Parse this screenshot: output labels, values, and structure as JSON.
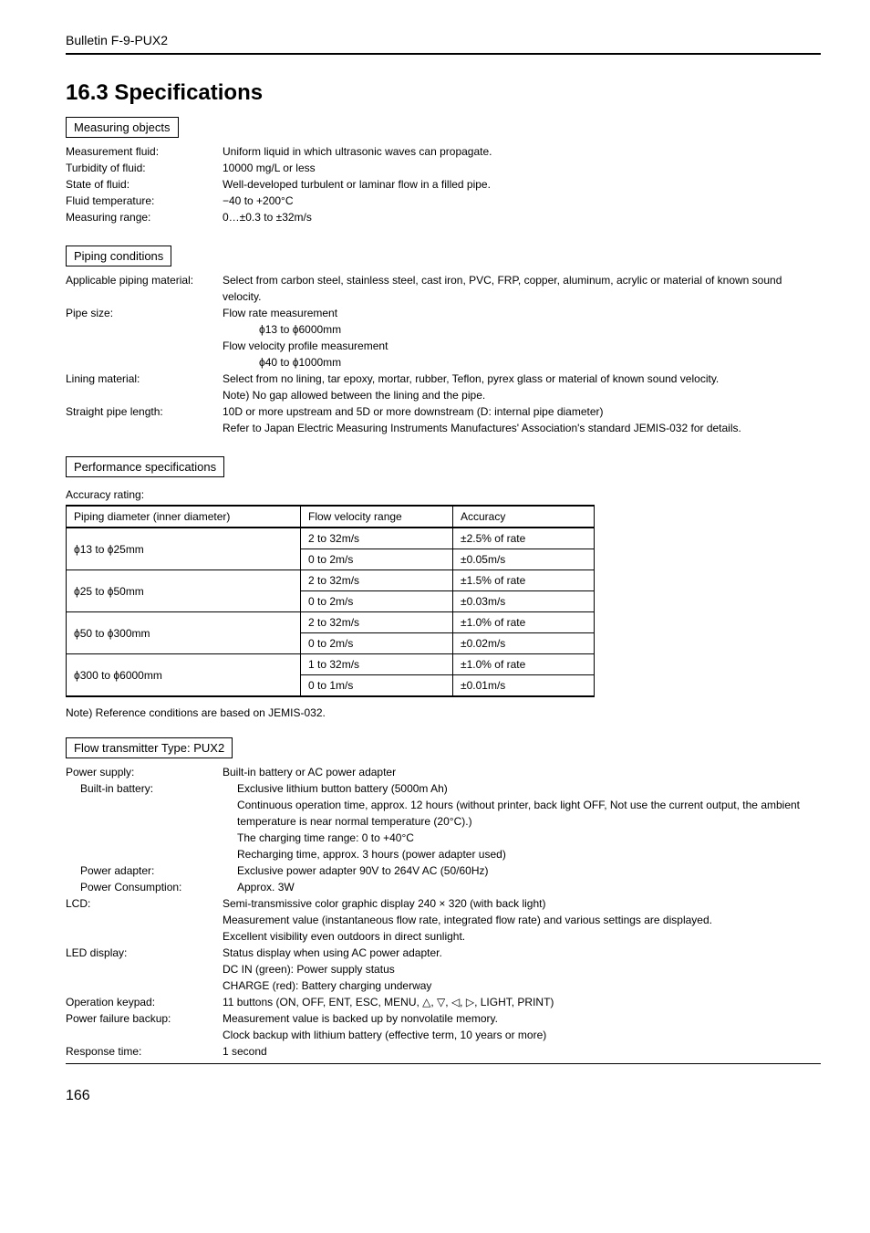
{
  "bulletin": "Bulletin F-9-PUX2",
  "section_title": "16.3  Specifications",
  "measuring_objects": {
    "box_label": "Measuring objects",
    "rows": [
      {
        "label": "Measurement fluid:",
        "value": "Uniform liquid in which ultrasonic waves can propagate."
      },
      {
        "label": "Turbidity of fluid:",
        "value": "10000 mg/L or less"
      },
      {
        "label": "State of fluid:",
        "value": "Well-developed turbulent or laminar flow in a filled pipe."
      },
      {
        "label": "Fluid temperature:",
        "value": "−40 to +200°C"
      },
      {
        "label": "Measuring range:",
        "value": "0…±0.3 to ±32m/s"
      }
    ]
  },
  "piping_conditions": {
    "box_label": "Piping conditions",
    "rows": [
      {
        "label": "Applicable piping material:",
        "lines": [
          "Select from carbon steel, stainless steel, cast iron, PVC, FRP, copper, aluminum, acrylic or material of known sound velocity."
        ]
      },
      {
        "label": "Pipe size:",
        "lines": [
          "Flow rate measurement",
          {
            "indent": true,
            "text": "ϕ13 to ϕ6000mm"
          },
          "Flow velocity profile measurement",
          {
            "indent": true,
            "text": "ϕ40 to ϕ1000mm"
          }
        ]
      },
      {
        "label": "Lining material:",
        "lines": [
          "Select from no lining, tar epoxy, mortar, rubber, Teflon, pyrex glass or material of known sound velocity.",
          "Note)  No gap allowed between the lining and the pipe."
        ]
      },
      {
        "label": "Straight pipe length:",
        "lines": [
          "10D or more upstream and 5D or more downstream (D: internal pipe diameter)",
          "Refer to Japan Electric Measuring Instruments Manufactures' Association's standard JEMIS-032 for details."
        ]
      }
    ]
  },
  "performance": {
    "box_label": "Performance specifications",
    "accuracy_heading": "Accuracy rating:",
    "table": {
      "headers": [
        "Piping diameter (inner diameter)",
        "Flow velocity range",
        "Accuracy"
      ],
      "groups": [
        {
          "diam": "ϕ13 to ϕ25mm",
          "rows": [
            [
              "2 to 32m/s",
              "±2.5% of rate"
            ],
            [
              "0 to 2m/s",
              "±0.05m/s"
            ]
          ]
        },
        {
          "diam": "ϕ25 to ϕ50mm",
          "rows": [
            [
              "2 to 32m/s",
              "±1.5% of rate"
            ],
            [
              "0 to 2m/s",
              "±0.03m/s"
            ]
          ]
        },
        {
          "diam": "ϕ50 to ϕ300mm",
          "rows": [
            [
              "2 to 32m/s",
              "±1.0% of rate"
            ],
            [
              "0 to 2m/s",
              "±0.02m/s"
            ]
          ]
        },
        {
          "diam": "ϕ300 to ϕ6000mm",
          "rows": [
            [
              "1 to 32m/s",
              "±1.0% of rate"
            ],
            [
              "0 to 1m/s",
              "±0.01m/s"
            ]
          ]
        }
      ]
    },
    "note": "Note) Reference conditions are based on JEMIS-032."
  },
  "flow_transmitter": {
    "box_label": "Flow transmitter Type: PUX2",
    "rows": [
      {
        "label": "Power supply:",
        "lines": [
          "Built-in battery or AC power adapter"
        ]
      },
      {
        "sub": true,
        "label": "Built-in battery:",
        "lines": [
          "Exclusive lithium button battery (5000m Ah)",
          "Continuous operation time, approx. 12 hours (without printer, back light OFF, Not use the current output, the ambient temperature is near normal temperature (20°C).)",
          "The charging time range: 0 to +40°C",
          "Recharging time, approx. 3 hours (power adapter used)"
        ]
      },
      {
        "sub": true,
        "label": "Power adapter:",
        "lines": [
          "Exclusive power adapter 90V to 264V AC (50/60Hz)"
        ]
      },
      {
        "sub": true,
        "label": "Power Consumption:",
        "lines": [
          "Approx. 3W"
        ]
      },
      {
        "label": "LCD:",
        "lines": [
          "Semi-transmissive color graphic display 240 × 320 (with back light)",
          "Measurement value (instantaneous flow rate, integrated flow rate) and various settings are displayed.",
          "Excellent visibility even outdoors in direct sunlight."
        ]
      },
      {
        "label": "LED display:",
        "lines": [
          "Status display when using AC power adapter.",
          "DC IN (green): Power supply status",
          "CHARGE (red): Battery charging underway"
        ]
      },
      {
        "label": "Operation keypad:",
        "lines": [
          "11 buttons (ON, OFF, ENT, ESC, MENU, △, ▽, ◁, ▷, LIGHT, PRINT)"
        ]
      },
      {
        "label": "Power failure backup:",
        "lines": [
          "Measurement value is backed up by nonvolatile memory.",
          "Clock backup with lithium battery (effective term, 10 years or more)"
        ]
      },
      {
        "label": "Response time:",
        "lines": [
          "1 second"
        ]
      }
    ]
  },
  "page_number": "166"
}
